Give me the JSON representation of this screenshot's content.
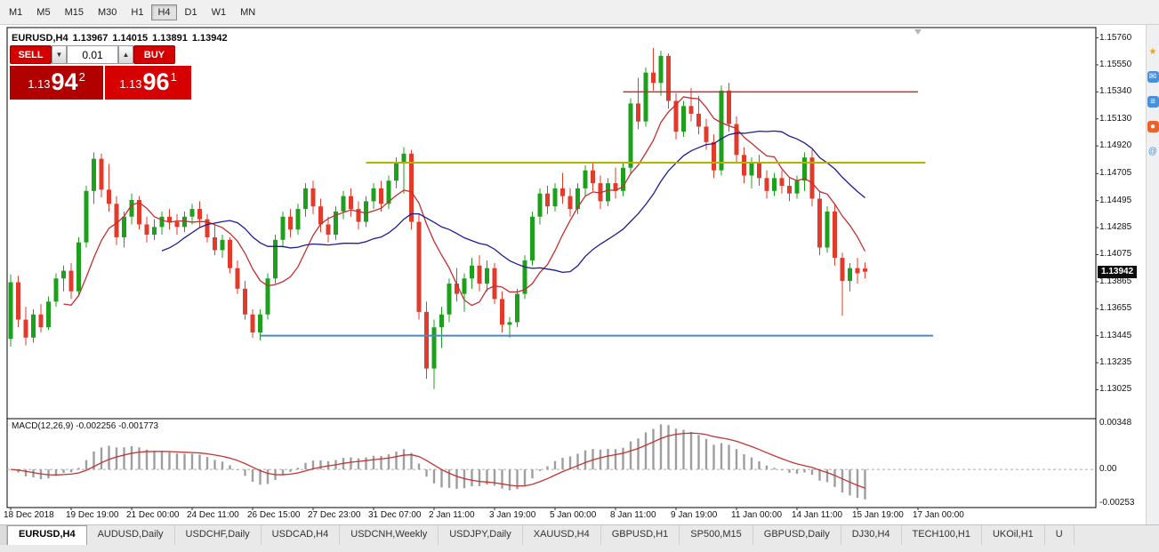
{
  "toolbar": {
    "timeframes": [
      {
        "label": "M1",
        "active": false
      },
      {
        "label": "M5",
        "active": false
      },
      {
        "label": "M15",
        "active": false
      },
      {
        "label": "M30",
        "active": false
      },
      {
        "label": "H1",
        "active": false
      },
      {
        "label": "H4",
        "active": true
      },
      {
        "label": "D1",
        "active": false
      },
      {
        "label": "W1",
        "active": false
      },
      {
        "label": "MN",
        "active": false
      }
    ]
  },
  "chart_header": {
    "symbol": "EURUSD,H4",
    "open": "1.13967",
    "high": "1.14015",
    "low": "1.13891",
    "close": "1.13942"
  },
  "trade_panel": {
    "sell_label": "SELL",
    "buy_label": "BUY",
    "lot_size": "0.01",
    "sell_price": {
      "prefix": "1.13",
      "big": "94",
      "sup": "2"
    },
    "buy_price": {
      "prefix": "1.13",
      "big": "96",
      "sup": "1"
    }
  },
  "colors": {
    "candle_up": "#1da11d",
    "candle_down": "#e23b2b",
    "macd_hist": "#9e9e9e",
    "macd_signal": "#c23434",
    "badge_bg": "#0d0d0d",
    "accent_red": "#d40000"
  },
  "side_icons": [
    {
      "name": "favorites-star-icon",
      "glyph": "★",
      "color": "#f0a30a",
      "bg": ""
    },
    {
      "name": "chat-icon",
      "glyph": "✉",
      "color": "#ffffff",
      "bg": "#4a90d9"
    },
    {
      "name": "list-icon",
      "glyph": "≡",
      "color": "#ffffff",
      "bg": "#4a90d9"
    },
    {
      "name": "browser-icon",
      "glyph": "●",
      "color": "#ffffff",
      "bg": "#e8642c"
    },
    {
      "name": "at-icon",
      "glyph": "@",
      "color": "#4a90d9",
      "bg": ""
    }
  ],
  "tabs": [
    {
      "label": "EURUSD,H4",
      "active": true
    },
    {
      "label": "AUDUSD,Daily",
      "active": false
    },
    {
      "label": "USDCHF,Daily",
      "active": false
    },
    {
      "label": "USDCAD,H4",
      "active": false
    },
    {
      "label": "USDCNH,Weekly",
      "active": false
    },
    {
      "label": "USDJPY,Daily",
      "active": false
    },
    {
      "label": "XAUUSD,H4",
      "active": false
    },
    {
      "label": "GBPUSD,H1",
      "active": false
    },
    {
      "label": "SP500,M15",
      "active": false
    },
    {
      "label": "GBPUSD,Daily",
      "active": false
    },
    {
      "label": "DJ30,H4",
      "active": false
    },
    {
      "label": "TECH100,H1",
      "active": false
    },
    {
      "label": "UKOil,H1",
      "active": false
    },
    {
      "label": "U",
      "active": false
    }
  ],
  "chart_data": [
    {
      "type": "candlestick",
      "title": "EURUSD,H4",
      "price_range": {
        "top": 1.1584,
        "bottom": 1.128
      },
      "axis_labels": [
        "1.15760",
        "1.15550",
        "1.15340",
        "1.15130",
        "1.14920",
        "1.14705",
        "1.14495",
        "1.14285",
        "1.14075",
        "1.13865",
        "1.13655",
        "1.13445",
        "1.13235",
        "1.13025"
      ],
      "current_price": "1.13942",
      "time_labels": [
        "18 Dec 2018",
        "19 Dec 19:00",
        "21 Dec 00:00",
        "24 Dec 11:00",
        "26 Dec 15:00",
        "27 Dec 23:00",
        "31 Dec 07:00",
        "2 Jan 11:00",
        "3 Jan 19:00",
        "5 Jan 00:00",
        "8 Jan 11:00",
        "9 Jan 19:00",
        "11 Jan 00:00",
        "14 Jan 11:00",
        "15 Jan 19:00",
        "17 Jan 00:00"
      ],
      "bars_per_label": 8,
      "overlays": {
        "ma_fast": {
          "period": 8,
          "color": "#c03030"
        },
        "ma_slow": {
          "period": 21,
          "color": "#1c1c94"
        }
      },
      "hlines": [
        {
          "name": "resistance-line-red",
          "price": 1.1534,
          "color": "#cc2e2e",
          "width": 1.4,
          "from_bar": 81,
          "to_bar": 120
        },
        {
          "name": "resistance-line-yellow",
          "price": 1.1479,
          "color": "#b3b300",
          "width": 2,
          "from_bar": 47,
          "to_bar": 121
        },
        {
          "name": "support-line-blue",
          "price": 1.13445,
          "color": "#4a86c8",
          "width": 2,
          "from_bar": 33,
          "to_bar": 122
        }
      ],
      "candles": [
        [
          1.1342,
          1.1392,
          1.1336,
          1.1386
        ],
        [
          1.1386,
          1.1391,
          1.1351,
          1.1357
        ],
        [
          1.1357,
          1.1367,
          1.1337,
          1.1343
        ],
        [
          1.1343,
          1.1365,
          1.1339,
          1.1361
        ],
        [
          1.1361,
          1.1369,
          1.1347,
          1.1351
        ],
        [
          1.1351,
          1.1375,
          1.1349,
          1.1371
        ],
        [
          1.1371,
          1.1393,
          1.1367,
          1.1389
        ],
        [
          1.1389,
          1.1399,
          1.1379,
          1.1395
        ],
        [
          1.1395,
          1.1401,
          1.1373,
          1.1379
        ],
        [
          1.1379,
          1.1421,
          1.1375,
          1.1417
        ],
        [
          1.1417,
          1.1461,
          1.1413,
          1.1457
        ],
        [
          1.1457,
          1.1487,
          1.1447,
          1.1482
        ],
        [
          1.1482,
          1.1486,
          1.1452,
          1.1458
        ],
        [
          1.1458,
          1.1478,
          1.1441,
          1.1447
        ],
        [
          1.1447,
          1.1453,
          1.1415,
          1.1421
        ],
        [
          1.1421,
          1.1441,
          1.1413,
          1.1437
        ],
        [
          1.1437,
          1.1455,
          1.1431,
          1.145
        ],
        [
          1.145,
          1.1453,
          1.1427,
          1.1431
        ],
        [
          1.1431,
          1.1437,
          1.1417,
          1.1423
        ],
        [
          1.1423,
          1.1435,
          1.1419,
          1.1429
        ],
        [
          1.1429,
          1.1441,
          1.1423,
          1.1437
        ],
        [
          1.1437,
          1.1443,
          1.1427,
          1.1433
        ],
        [
          1.1433,
          1.1439,
          1.1423,
          1.1429
        ],
        [
          1.1429,
          1.1441,
          1.1425,
          1.1437
        ],
        [
          1.1437,
          1.1447,
          1.1431,
          1.1443
        ],
        [
          1.1443,
          1.1449,
          1.1429,
          1.1435
        ],
        [
          1.1435,
          1.1439,
          1.1417,
          1.1421
        ],
        [
          1.1421,
          1.1431,
          1.1407,
          1.1411
        ],
        [
          1.1411,
          1.1423,
          1.1405,
          1.1419
        ],
        [
          1.1419,
          1.1421,
          1.1393,
          1.1397
        ],
        [
          1.1397,
          1.1403,
          1.1377,
          1.1381
        ],
        [
          1.1381,
          1.1387,
          1.1357,
          1.1361
        ],
        [
          1.1361,
          1.1365,
          1.1343,
          1.1347
        ],
        [
          1.1347,
          1.1365,
          1.1341,
          1.1361
        ],
        [
          1.1361,
          1.1393,
          1.1357,
          1.1389
        ],
        [
          1.1389,
          1.1423,
          1.1385,
          1.1419
        ],
        [
          1.1419,
          1.1441,
          1.1413,
          1.1437
        ],
        [
          1.1437,
          1.1443,
          1.1421,
          1.1427
        ],
        [
          1.1427,
          1.1447,
          1.1423,
          1.1443
        ],
        [
          1.1443,
          1.1463,
          1.1437,
          1.1459
        ],
        [
          1.1459,
          1.1465,
          1.1439,
          1.1445
        ],
        [
          1.1445,
          1.1451,
          1.1425,
          1.1431
        ],
        [
          1.1431,
          1.1437,
          1.1417,
          1.1423
        ],
        [
          1.1423,
          1.1445,
          1.1419,
          1.1441
        ],
        [
          1.1441,
          1.1457,
          1.1435,
          1.1453
        ],
        [
          1.1453,
          1.1459,
          1.1437,
          1.1443
        ],
        [
          1.1443,
          1.1449,
          1.1427,
          1.1433
        ],
        [
          1.1433,
          1.1453,
          1.1429,
          1.1449
        ],
        [
          1.1449,
          1.1463,
          1.1443,
          1.1459
        ],
        [
          1.1459,
          1.1465,
          1.1441,
          1.1447
        ],
        [
          1.1447,
          1.1469,
          1.1443,
          1.1465
        ],
        [
          1.1465,
          1.1483,
          1.1459,
          1.1479
        ],
        [
          1.1479,
          1.1491,
          1.1455,
          1.1486
        ],
        [
          1.1486,
          1.1489,
          1.1427,
          1.1433
        ],
        [
          1.1433,
          1.1439,
          1.1357,
          1.1363
        ],
        [
          1.1363,
          1.1371,
          1.1311,
          1.1319
        ],
        [
          1.1319,
          1.1357,
          1.1303,
          1.1351
        ],
        [
          1.1351,
          1.1367,
          1.1335,
          1.1361
        ],
        [
          1.1361,
          1.1389,
          1.1355,
          1.1385
        ],
        [
          1.1385,
          1.1397,
          1.1371,
          1.1377
        ],
        [
          1.1377,
          1.1393,
          1.1363,
          1.1389
        ],
        [
          1.1389,
          1.1405,
          1.1381,
          1.1399
        ],
        [
          1.1399,
          1.1407,
          1.1379,
          1.1385
        ],
        [
          1.1385,
          1.1403,
          1.1379,
          1.1397
        ],
        [
          1.1397,
          1.1401,
          1.1369,
          1.1373
        ],
        [
          1.1373,
          1.1379,
          1.1347,
          1.1353
        ],
        [
          1.1353,
          1.1359,
          1.1343,
          1.1355
        ],
        [
          1.1355,
          1.1381,
          1.1351,
          1.1377
        ],
        [
          1.1377,
          1.1407,
          1.1373,
          1.1403
        ],
        [
          1.1403,
          1.1441,
          1.1399,
          1.1437
        ],
        [
          1.1437,
          1.1459,
          1.1431,
          1.1455
        ],
        [
          1.1455,
          1.1461,
          1.1439,
          1.1445
        ],
        [
          1.1445,
          1.1463,
          1.1441,
          1.1459
        ],
        [
          1.1459,
          1.1471,
          1.1447,
          1.1453
        ],
        [
          1.1453,
          1.1459,
          1.1437,
          1.1443
        ],
        [
          1.1443,
          1.1463,
          1.1439,
          1.1459
        ],
        [
          1.1459,
          1.1477,
          1.1453,
          1.1473
        ],
        [
          1.1473,
          1.1479,
          1.1457,
          1.1463
        ],
        [
          1.1463,
          1.1469,
          1.1443,
          1.1449
        ],
        [
          1.1449,
          1.1467,
          1.1445,
          1.1463
        ],
        [
          1.1463,
          1.1475,
          1.1451,
          1.1457
        ],
        [
          1.1457,
          1.1479,
          1.1453,
          1.1475
        ],
        [
          1.1475,
          1.1529,
          1.1471,
          1.1525
        ],
        [
          1.1525,
          1.1545,
          1.1505,
          1.1511
        ],
        [
          1.1511,
          1.1553,
          1.1507,
          1.1549
        ],
        [
          1.1549,
          1.1568,
          1.1535,
          1.1541
        ],
        [
          1.1541,
          1.1566,
          1.1531,
          1.1562
        ],
        [
          1.1562,
          1.1564,
          1.1521,
          1.1527
        ],
        [
          1.1527,
          1.1533,
          1.1497,
          1.1503
        ],
        [
          1.1503,
          1.1527,
          1.1499,
          1.1523
        ],
        [
          1.1523,
          1.1537,
          1.1511,
          1.1517
        ],
        [
          1.1517,
          1.1531,
          1.1501,
          1.1507
        ],
        [
          1.1507,
          1.1513,
          1.1489,
          1.1495
        ],
        [
          1.1495,
          1.1501,
          1.1467,
          1.1473
        ],
        [
          1.1473,
          1.1539,
          1.1469,
          1.1535
        ],
        [
          1.1535,
          1.1541,
          1.1503,
          1.1509
        ],
        [
          1.1509,
          1.1515,
          1.1479,
          1.1485
        ],
        [
          1.1485,
          1.1491,
          1.1463,
          1.1469
        ],
        [
          1.1469,
          1.1483,
          1.1459,
          1.1479
        ],
        [
          1.1479,
          1.1485,
          1.1461,
          1.1467
        ],
        [
          1.1467,
          1.1473,
          1.1451,
          1.1457
        ],
        [
          1.1457,
          1.1471,
          1.1453,
          1.1467
        ],
        [
          1.1467,
          1.1473,
          1.1455,
          1.1461
        ],
        [
          1.1461,
          1.1467,
          1.1449,
          1.1455
        ],
        [
          1.1455,
          1.1469,
          1.1451,
          1.1465
        ],
        [
          1.1465,
          1.1487,
          1.1457,
          1.1483
        ],
        [
          1.1483,
          1.1489,
          1.1445,
          1.1451
        ],
        [
          1.1451,
          1.1457,
          1.1407,
          1.1413
        ],
        [
          1.1413,
          1.1445,
          1.1409,
          1.1441
        ],
        [
          1.1441,
          1.1447,
          1.1399,
          1.1405
        ],
        [
          1.1405,
          1.1409,
          1.136,
          1.1387
        ],
        [
          1.1387,
          1.1401,
          1.1379,
          1.1397
        ],
        [
          1.1397,
          1.1405,
          1.1385,
          1.1393
        ],
        [
          1.13967,
          1.14015,
          1.13891,
          1.13942
        ]
      ]
    },
    {
      "type": "macd_histogram",
      "indicator_label": "MACD(12,26,9) -0.002256 -0.001773",
      "params": [
        12,
        26,
        9
      ],
      "main_value": -0.002256,
      "signal_value": -0.001773,
      "axis_labels": [
        "0.00348",
        "0.00",
        "-0.00253"
      ],
      "range": {
        "max": 0.00348,
        "min": -0.00253
      }
    }
  ]
}
